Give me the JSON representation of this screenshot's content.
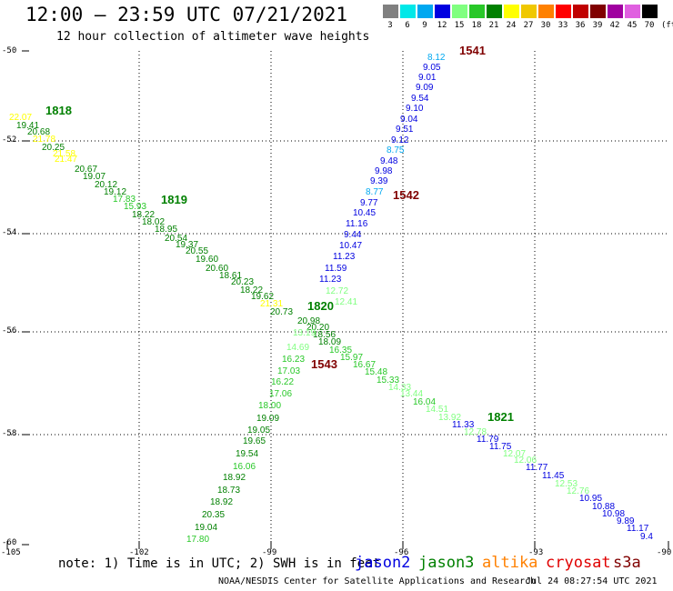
{
  "header": {
    "title": "12:00 – 23:59 UTC 07/21/2021",
    "subtitle": "12 hour collection of altimeter wave heights"
  },
  "legend": {
    "unit": "(ft)",
    "items": [
      {
        "label": "3",
        "color": "#808080"
      },
      {
        "label": "6",
        "color": "#00e8e8"
      },
      {
        "label": "9",
        "color": "#00a8f0"
      },
      {
        "label": "12",
        "color": "#0000e0"
      },
      {
        "label": "15",
        "color": "#80ff80"
      },
      {
        "label": "18",
        "color": "#28c828"
      },
      {
        "label": "21",
        "color": "#008000"
      },
      {
        "label": "24",
        "color": "#ffff00"
      },
      {
        "label": "27",
        "color": "#f0c800"
      },
      {
        "label": "30",
        "color": "#ff8000"
      },
      {
        "label": "33",
        "color": "#ff0000"
      },
      {
        "label": "36",
        "color": "#c00000"
      },
      {
        "label": "39",
        "color": "#800000"
      },
      {
        "label": "42",
        "color": "#a000a0"
      },
      {
        "label": "45",
        "color": "#e060e0"
      },
      {
        "label": "70",
        "color": "#000000"
      }
    ]
  },
  "axes": {
    "lat_labels": [
      "-50",
      "-52",
      "-54",
      "-56",
      "-58",
      "-60"
    ],
    "lon_labels": [
      "-105",
      "-102",
      "-99",
      "-96",
      "-93",
      "-90"
    ]
  },
  "tracks": [
    {
      "name": "descending-track",
      "points": [
        {
          "t": "8.12",
          "c": "#00a8f0"
        },
        {
          "t": "9.05",
          "c": "#0000e0"
        },
        {
          "t": "9.01",
          "c": "#0000e0"
        },
        {
          "t": "9.09",
          "c": "#0000e0"
        },
        {
          "t": "9.54",
          "c": "#0000e0"
        },
        {
          "t": "9.10",
          "c": "#0000e0"
        },
        {
          "t": "9.04",
          "c": "#0000e0"
        },
        {
          "t": "9.51",
          "c": "#0000e0"
        },
        {
          "t": "9.12",
          "c": "#0000e0"
        },
        {
          "t": "8.75",
          "c": "#00a8f0"
        },
        {
          "t": "9.48",
          "c": "#0000e0"
        },
        {
          "t": "9.98",
          "c": "#0000e0"
        },
        {
          "t": "9.39",
          "c": "#0000e0"
        },
        {
          "t": "8.77",
          "c": "#00a8f0"
        },
        {
          "t": "9.77",
          "c": "#0000e0"
        },
        {
          "t": "10.45",
          "c": "#0000e0"
        },
        {
          "t": "11.16",
          "c": "#0000e0"
        },
        {
          "t": "9.44",
          "c": "#0000e0"
        },
        {
          "t": "10.47",
          "c": "#0000e0"
        },
        {
          "t": "11.23",
          "c": "#0000e0"
        },
        {
          "t": "11.59",
          "c": "#0000e0"
        },
        {
          "t": "11.23",
          "c": "#0000e0"
        },
        {
          "t": "12.72",
          "c": "#80ff80"
        },
        {
          "t": "12.41",
          "c": "#80ff80"
        },
        {
          "t": "20.98",
          "c": "#008000"
        },
        {
          "t": "20.20",
          "c": "#008000"
        },
        {
          "t": "18.56",
          "c": "#008000"
        },
        {
          "t": "13.19",
          "c": "#80ff80"
        },
        {
          "t": "14.69",
          "c": "#80ff80"
        },
        {
          "t": "16.23",
          "c": "#28c828"
        },
        {
          "t": "17.03",
          "c": "#28c828"
        },
        {
          "t": "16.22",
          "c": "#28c828"
        },
        {
          "t": "17.06",
          "c": "#28c828"
        },
        {
          "t": "18.00",
          "c": "#28c828"
        },
        {
          "t": "19.09",
          "c": "#008000"
        },
        {
          "t": "19.05",
          "c": "#008000"
        },
        {
          "t": "19.65",
          "c": "#008000"
        },
        {
          "t": "19.54",
          "c": "#008000"
        },
        {
          "t": "16.06",
          "c": "#28c828"
        },
        {
          "t": "18.92",
          "c": "#008000"
        },
        {
          "t": "18.73",
          "c": "#008000"
        },
        {
          "t": "18.92",
          "c": "#008000"
        },
        {
          "t": "20.35",
          "c": "#008000"
        },
        {
          "t": "19.04",
          "c": "#008000"
        },
        {
          "t": "17.80",
          "c": "#28c828"
        }
      ]
    },
    {
      "name": "ascending-track",
      "points": [
        {
          "t": "22.07",
          "c": "#ffff00"
        },
        {
          "t": "19.41",
          "c": "#008000"
        },
        {
          "t": "20.68",
          "c": "#008000"
        },
        {
          "t": "21.78",
          "c": "#ffff00"
        },
        {
          "t": "20.25",
          "c": "#008000"
        },
        {
          "t": "21.58",
          "c": "#ffff00"
        },
        {
          "t": "21.47",
          "c": "#ffff00"
        },
        {
          "t": "20.67",
          "c": "#008000"
        },
        {
          "t": "19.07",
          "c": "#008000"
        },
        {
          "t": "20.12",
          "c": "#008000"
        },
        {
          "t": "19.12",
          "c": "#008000"
        },
        {
          "t": "17.83",
          "c": "#28c828"
        },
        {
          "t": "15.93",
          "c": "#28c828"
        },
        {
          "t": "18.22",
          "c": "#008000"
        },
        {
          "t": "18.02",
          "c": "#008000"
        },
        {
          "t": "18.95",
          "c": "#008000"
        },
        {
          "t": "20.54",
          "c": "#008000"
        },
        {
          "t": "19.37",
          "c": "#008000"
        },
        {
          "t": "20.55",
          "c": "#008000"
        },
        {
          "t": "19.60",
          "c": "#008000"
        },
        {
          "t": "20.60",
          "c": "#008000"
        },
        {
          "t": "18.61",
          "c": "#008000"
        },
        {
          "t": "20.23",
          "c": "#008000"
        },
        {
          "t": "18.22",
          "c": "#008000"
        },
        {
          "t": "19.62",
          "c": "#008000"
        },
        {
          "t": "21.31",
          "c": "#ffff00"
        },
        {
          "t": "20.73",
          "c": "#008000"
        },
        {
          "t": "18.09",
          "c": "#008000"
        },
        {
          "t": "16.35",
          "c": "#28c828"
        },
        {
          "t": "15.97",
          "c": "#28c828"
        },
        {
          "t": "16.67",
          "c": "#28c828"
        },
        {
          "t": "15.48",
          "c": "#28c828"
        },
        {
          "t": "15.33",
          "c": "#28c828"
        },
        {
          "t": "14.33",
          "c": "#80ff80"
        },
        {
          "t": "13.44",
          "c": "#80ff80"
        },
        {
          "t": "16.04",
          "c": "#28c828"
        },
        {
          "t": "14.51",
          "c": "#80ff80"
        },
        {
          "t": "13.92",
          "c": "#80ff80"
        },
        {
          "t": "11.33",
          "c": "#0000e0"
        },
        {
          "t": "12.78",
          "c": "#80ff80"
        },
        {
          "t": "11.79",
          "c": "#0000e0"
        },
        {
          "t": "11.75",
          "c": "#0000e0"
        },
        {
          "t": "12.07",
          "c": "#80ff80"
        },
        {
          "t": "12.06",
          "c": "#80ff80"
        },
        {
          "t": "11.77",
          "c": "#0000e0"
        },
        {
          "t": "11.45",
          "c": "#0000e0"
        },
        {
          "t": "12.53",
          "c": "#80ff80"
        },
        {
          "t": "12.76",
          "c": "#80ff80"
        },
        {
          "t": "10.95",
          "c": "#0000e0"
        },
        {
          "t": "10.88",
          "c": "#0000e0"
        },
        {
          "t": "10.98",
          "c": "#0000e0"
        },
        {
          "t": "9.89",
          "c": "#0000e0"
        },
        {
          "t": "11.17",
          "c": "#0000e0"
        },
        {
          "t": "9.4",
          "c": "#0000e0"
        }
      ]
    }
  ],
  "time_marks": [
    {
      "t": "1541",
      "c": "#800000"
    },
    {
      "t": "1542",
      "c": "#800000"
    },
    {
      "t": "1543",
      "c": "#800000"
    },
    {
      "t": "1818",
      "c": "#008000"
    },
    {
      "t": "1819",
      "c": "#008000"
    },
    {
      "t": "1820",
      "c": "#008000"
    },
    {
      "t": "1821",
      "c": "#008000"
    }
  ],
  "footer": {
    "note": "note:  1) Time is in UTC; 2) SWH is in feet",
    "satellites": [
      {
        "name": "jason2",
        "color": "#0000e0"
      },
      {
        "name": "jason3",
        "color": "#008000"
      },
      {
        "name": "altika",
        "color": "#ff8000"
      },
      {
        "name": "cryosat",
        "color": "#e00000"
      },
      {
        "name": "s3a",
        "color": "#800000"
      }
    ],
    "credit": "NOAA/NESDIS Center for Satellite Applications and Research",
    "timestamp": "Jul 24 08:27:54 UTC 2021"
  }
}
